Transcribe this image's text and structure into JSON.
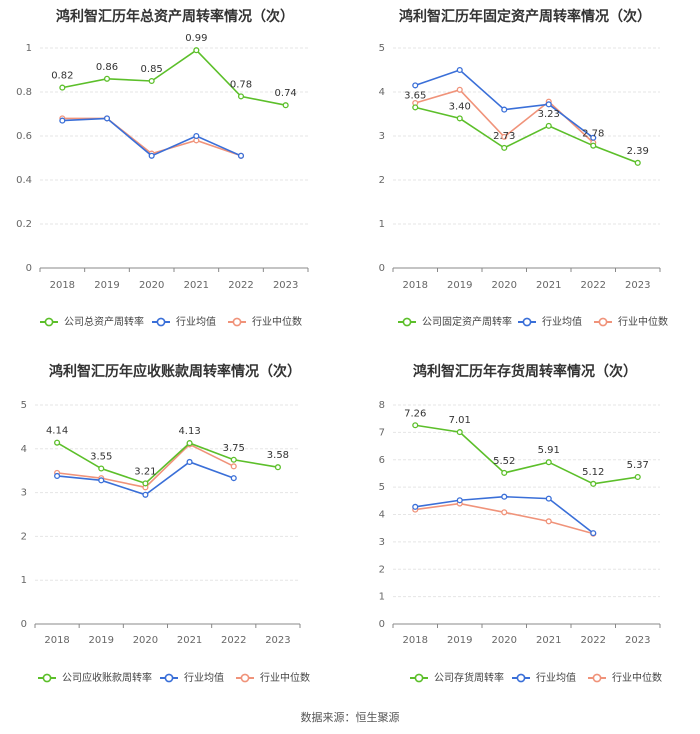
{
  "colors": {
    "company": "#5cbf2a",
    "industry_avg": "#3a6fd8",
    "industry_median": "#f0937a",
    "grid": "#e5e5e5",
    "axis": "#888888",
    "title": "#333333"
  },
  "source": "数据来源：恒生聚源",
  "chart_data": [
    {
      "type": "line",
      "title": "鸿利智汇历年总资产周转率情况（次）",
      "categories": [
        "2018",
        "2019",
        "2020",
        "2021",
        "2022",
        "2023"
      ],
      "ylim": [
        0,
        1
      ],
      "yticks": [
        "0",
        "0.2",
        "0.4",
        "0.6",
        "0.8",
        "1"
      ],
      "series": [
        {
          "name": "公司总资产周转率",
          "values": [
            0.82,
            0.86,
            0.85,
            0.99,
            0.78,
            0.74
          ],
          "labels": [
            "0.82",
            "0.86",
            "0.85",
            "0.99",
            "0.78",
            "0.74"
          ]
        },
        {
          "name": "行业均值",
          "values": [
            0.67,
            0.68,
            0.51,
            0.6,
            0.51,
            null
          ]
        },
        {
          "name": "行业中位数",
          "values": [
            0.68,
            0.68,
            0.52,
            0.58,
            0.51,
            null
          ]
        }
      ]
    },
    {
      "type": "line",
      "title": "鸿利智汇历年固定资产周转率情况（次）",
      "categories": [
        "2018",
        "2019",
        "2020",
        "2021",
        "2022",
        "2023"
      ],
      "ylim": [
        0,
        5
      ],
      "yticks": [
        "0",
        "1",
        "2",
        "3",
        "4",
        "5"
      ],
      "series": [
        {
          "name": "公司固定资产周转率",
          "values": [
            3.65,
            3.4,
            2.73,
            3.23,
            2.78,
            2.39
          ],
          "labels": [
            "3.65",
            "3.40",
            "2.73",
            "3.23",
            "2.78",
            "2.39"
          ]
        },
        {
          "name": "行业均值",
          "values": [
            4.15,
            4.5,
            3.6,
            3.72,
            2.96,
            null
          ]
        },
        {
          "name": "行业中位数",
          "values": [
            3.75,
            4.05,
            2.98,
            3.78,
            2.85,
            null
          ]
        }
      ]
    },
    {
      "type": "line",
      "title": "鸿利智汇历年应收账款周转率情况（次）",
      "categories": [
        "2018",
        "2019",
        "2020",
        "2021",
        "2022",
        "2023"
      ],
      "ylim": [
        0,
        5
      ],
      "yticks": [
        "0",
        "1",
        "2",
        "3",
        "4",
        "5"
      ],
      "series": [
        {
          "name": "公司应收账款周转率",
          "values": [
            4.14,
            3.55,
            3.21,
            4.13,
            3.75,
            3.58
          ],
          "labels": [
            "4.14",
            "3.55",
            "3.21",
            "4.13",
            "3.75",
            "3.58"
          ]
        },
        {
          "name": "行业均值",
          "values": [
            3.38,
            3.28,
            2.95,
            3.7,
            3.33,
            null
          ]
        },
        {
          "name": "行业中位数",
          "values": [
            3.45,
            3.33,
            3.12,
            4.1,
            3.6,
            null
          ]
        }
      ]
    },
    {
      "type": "line",
      "title": "鸿利智汇历年存货周转率情况（次）",
      "categories": [
        "2018",
        "2019",
        "2020",
        "2021",
        "2022",
        "2023"
      ],
      "ylim": [
        0,
        8
      ],
      "yticks": [
        "0",
        "1",
        "2",
        "3",
        "4",
        "5",
        "6",
        "7",
        "8"
      ],
      "series": [
        {
          "name": "公司存货周转率",
          "values": [
            7.26,
            7.01,
            5.52,
            5.91,
            5.12,
            5.37
          ],
          "labels": [
            "7.26",
            "7.01",
            "5.52",
            "5.91",
            "5.12",
            "5.37"
          ]
        },
        {
          "name": "行业均值",
          "values": [
            4.28,
            4.52,
            4.65,
            4.58,
            3.32,
            null
          ]
        },
        {
          "name": "行业中位数",
          "values": [
            4.18,
            4.4,
            4.08,
            3.75,
            3.3,
            null
          ]
        }
      ]
    }
  ]
}
